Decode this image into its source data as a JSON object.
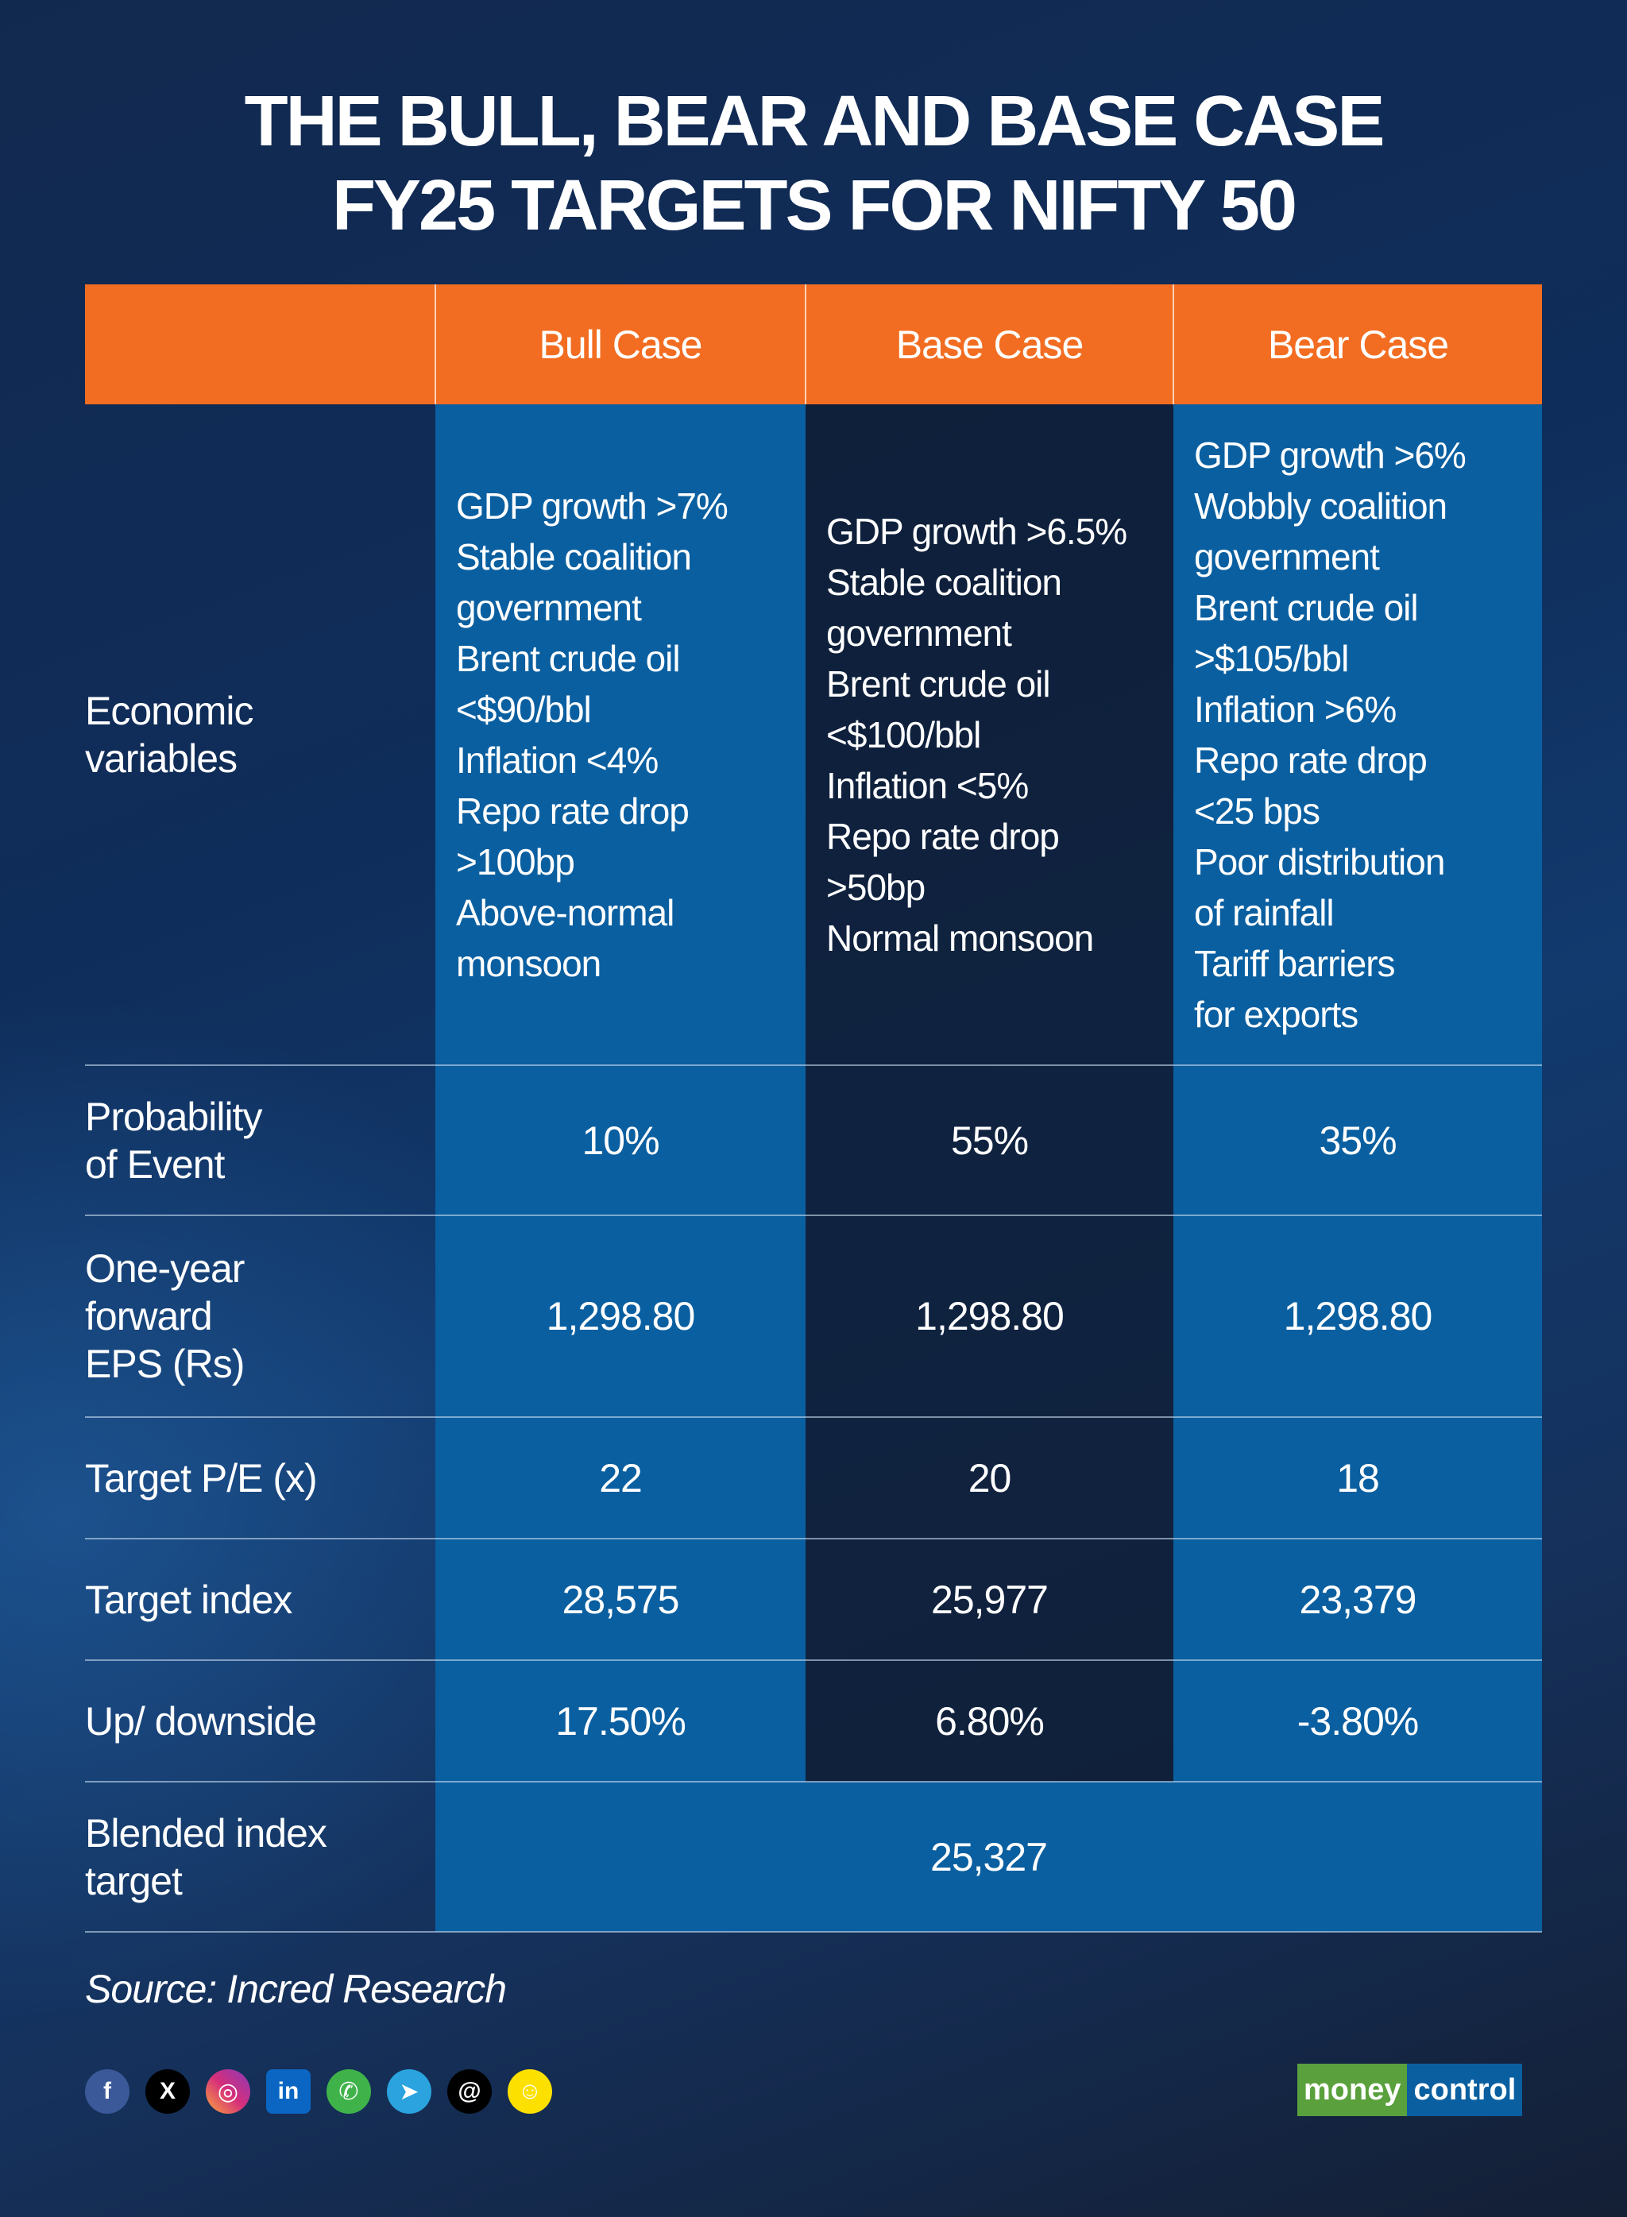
{
  "title": [
    "THE BULL, BEAR AND BASE CASE",
    "FY25 TARGETS FOR NIFTY 50"
  ],
  "table": {
    "headers": [
      "",
      "Bull Case",
      "Base Case",
      "Bear Case"
    ],
    "economic_label": [
      "Economic",
      "variables"
    ],
    "economic": [
      [
        "GDP growth >7%",
        "Stable coalition",
        "government",
        "Brent crude oil",
        "<$90/bbl",
        "Inflation <4%",
        "Repo rate drop",
        ">100bp",
        "Above-normal",
        "monsoon"
      ],
      [
        "GDP growth >6.5%",
        "Stable coalition",
        "government",
        "Brent crude oil",
        "<$100/bbl",
        "Inflation <5%",
        "Repo rate drop",
        ">50bp",
        "Normal monsoon"
      ],
      [
        "GDP growth >6%",
        "Wobbly coalition",
        "government",
        "Brent crude oil",
        ">$105/bbl",
        "Inflation >6%",
        "Repo rate drop",
        "<25 bps",
        "Poor distribution",
        "of rainfall",
        "Tariff barriers",
        "for exports"
      ]
    ],
    "rows": [
      {
        "label": [
          "Probability",
          "of Event"
        ],
        "values": [
          "10%",
          "55%",
          "35%"
        ]
      },
      {
        "label": [
          "One-year",
          "forward",
          "EPS (Rs)"
        ],
        "values": [
          "1,298.80",
          "1,298.80",
          "1,298.80"
        ]
      },
      {
        "label": [
          "Target P/E (x)"
        ],
        "values": [
          "22",
          "20",
          "18"
        ]
      },
      {
        "label": [
          "Target index"
        ],
        "values": [
          "28,575",
          "25,977",
          "23,379"
        ]
      },
      {
        "label": [
          "Up/ downside"
        ],
        "values": [
          "17.50%",
          "6.80%",
          "-3.80%"
        ]
      }
    ],
    "blended": {
      "label": [
        "Blended index",
        "target"
      ],
      "value": "25,327"
    }
  },
  "source": "Source: Incred Research",
  "social_icons": [
    "facebook-icon",
    "x-icon",
    "instagram-icon",
    "linkedin-icon",
    "whatsapp-icon",
    "telegram-icon",
    "threads-icon",
    "snapchat-icon"
  ],
  "logo": {
    "part1": "money",
    "part2": "control"
  },
  "colors": {
    "header": "#f26d21",
    "cell_blue": "#0a5fa0",
    "logo_green": "#5aa03c",
    "logo_blue": "#0a5fa0"
  }
}
